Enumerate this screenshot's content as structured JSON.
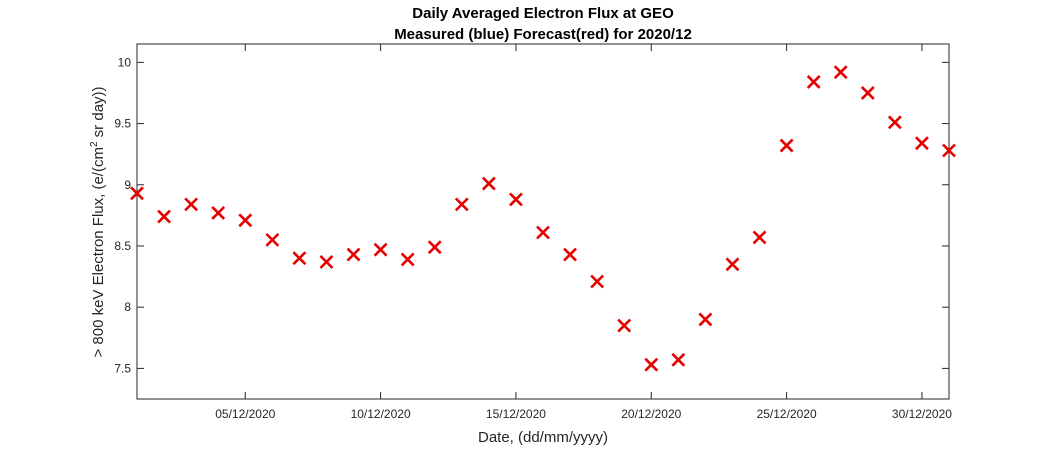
{
  "chart_data": {
    "type": "scatter",
    "title_lines": [
      "Daily Averaged Electron Flux at GEO",
      "Measured (blue) Forecast(red) for 2020/12"
    ],
    "xlabel": "Date, (dd/mm/yyyy)",
    "ylabel": {
      "before_sup": "> 800 keV Electron Flux, (e/(cm",
      "sup": "2",
      "after_sup": " sr day))"
    },
    "xlim": [
      1,
      31
    ],
    "ylim": [
      7.25,
      10.15
    ],
    "x_ticks": [
      {
        "value": 5,
        "label": "05/12/2020"
      },
      {
        "value": 10,
        "label": "10/12/2020"
      },
      {
        "value": 15,
        "label": "15/12/2020"
      },
      {
        "value": 20,
        "label": "20/12/2020"
      },
      {
        "value": 25,
        "label": "25/12/2020"
      },
      {
        "value": 30,
        "label": "30/12/2020"
      }
    ],
    "y_ticks": [
      {
        "value": 7.5,
        "label": "7.5"
      },
      {
        "value": 8,
        "label": "8"
      },
      {
        "value": 8.5,
        "label": "8.5"
      },
      {
        "value": 9,
        "label": "9"
      },
      {
        "value": 9.5,
        "label": "9.5"
      },
      {
        "value": 10,
        "label": "10"
      }
    ],
    "grid": false,
    "series": [
      {
        "color": "#e60000",
        "marker": "x",
        "x": [
          "01/12/2020",
          "02/12/2020",
          "03/12/2020",
          "04/12/2020",
          "05/12/2020",
          "06/12/2020",
          "07/12/2020",
          "08/12/2020",
          "09/12/2020",
          "10/12/2020",
          "11/12/2020",
          "12/12/2020",
          "13/12/2020",
          "14/12/2020",
          "15/12/2020",
          "16/12/2020",
          "17/12/2020",
          "18/12/2020",
          "19/12/2020",
          "20/12/2020",
          "21/12/2020",
          "22/12/2020",
          "23/12/2020",
          "24/12/2020",
          "25/12/2020",
          "26/12/2020",
          "27/12/2020",
          "28/12/2020",
          "29/12/2020",
          "30/12/2020",
          "31/12/2020"
        ],
        "values": [
          8.93,
          8.74,
          8.84,
          8.77,
          8.71,
          8.55,
          8.4,
          8.37,
          8.43,
          8.47,
          8.39,
          8.49,
          8.84,
          9.01,
          8.88,
          8.61,
          8.43,
          8.21,
          7.85,
          7.53,
          7.57,
          7.9,
          8.35,
          8.57,
          9.32,
          9.84,
          9.92,
          9.75,
          9.51,
          9.34,
          9.28
        ]
      }
    ]
  }
}
